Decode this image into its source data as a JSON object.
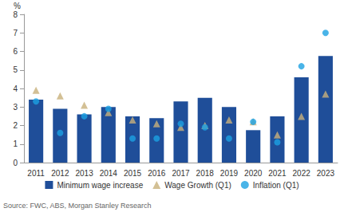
{
  "chart_data": {
    "type": "bar",
    "ylabel": "%",
    "source": "Source: FWC, ABS, Morgan Stanley Research",
    "categories": [
      "2011",
      "2012",
      "2013",
      "2014",
      "2015",
      "2016",
      "2017",
      "2018",
      "2019",
      "2020",
      "2021",
      "2022",
      "2023"
    ],
    "series": [
      {
        "name": "Minimum wage increase",
        "type": "bar",
        "color": "#1f4e99",
        "values": [
          3.4,
          2.9,
          2.6,
          3.0,
          2.5,
          2.4,
          3.3,
          3.5,
          3.0,
          1.75,
          2.5,
          4.6,
          5.75
        ]
      },
      {
        "name": "Wage Growth (Q1)",
        "type": "scatter",
        "marker": "triangle",
        "color": "#c8b07a",
        "values": [
          3.9,
          3.6,
          3.1,
          2.7,
          2.3,
          2.1,
          1.9,
          2.0,
          2.3,
          2.2,
          1.5,
          2.5,
          3.7
        ]
      },
      {
        "name": "Inflation (Q1)",
        "type": "scatter",
        "marker": "circle",
        "color": "#1ba1e2",
        "values": [
          3.3,
          1.6,
          2.5,
          2.9,
          1.3,
          1.3,
          2.1,
          1.9,
          1.3,
          2.2,
          1.1,
          5.2,
          7.0
        ]
      }
    ],
    "ylim": [
      0,
      8
    ],
    "yticks": [
      0,
      1,
      2,
      3,
      4,
      5,
      6,
      7,
      8
    ],
    "grid": false,
    "legend": "bottom"
  }
}
